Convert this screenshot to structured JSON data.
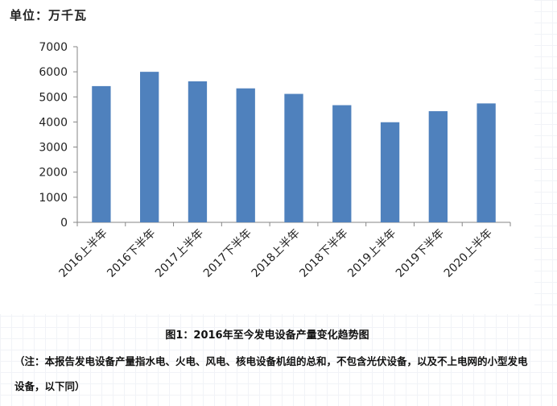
{
  "unit_label": "单位：万千瓦",
  "chart_data": {
    "type": "bar",
    "categories": [
      "2016上半年",
      "2016下半年",
      "2017上半年",
      "2017下半年",
      "2018上半年",
      "2018下半年",
      "2019上半年",
      "2019下半年",
      "2020上半年"
    ],
    "values": [
      5430,
      6000,
      5620,
      5340,
      5120,
      4670,
      3990,
      4430,
      4740
    ],
    "ylim": [
      0,
      7000
    ],
    "yticks": [
      0,
      1000,
      2000,
      3000,
      4000,
      5000,
      6000,
      7000
    ],
    "bar_color": "#4f81bd",
    "grid": false,
    "legend": false
  },
  "caption": "图1：2016年至今发电设备产量变化趋势图",
  "note": "（注：本报告发电设备产量指水电、火电、风电、核电设备机组的总和，不包含光伏设备，以及不上电网的小型发电设备，以下同）"
}
